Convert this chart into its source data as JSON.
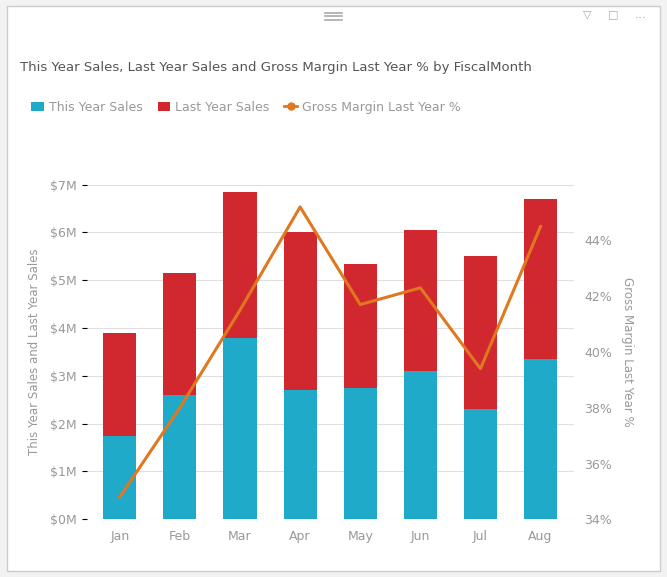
{
  "title": "This Year Sales, Last Year Sales and Gross Margin Last Year % by FiscalMonth",
  "months": [
    "Jan",
    "Feb",
    "Mar",
    "Apr",
    "May",
    "Jun",
    "Jul",
    "Aug"
  ],
  "this_year_sales": [
    1.75,
    2.6,
    3.8,
    2.7,
    2.75,
    3.1,
    2.3,
    3.35
  ],
  "last_year_sales": [
    2.15,
    2.55,
    3.05,
    3.3,
    2.6,
    2.95,
    3.2,
    3.35
  ],
  "gross_margin_pct": [
    34.8,
    38.0,
    41.5,
    45.2,
    41.7,
    42.3,
    39.4,
    44.5
  ],
  "bar_color_this": "#1EAAC8",
  "bar_color_last": "#D0282E",
  "line_color": "#E07820",
  "legend_labels": [
    "This Year Sales",
    "Last Year Sales",
    "Gross Margin Last Year %"
  ],
  "ylabel_left": "This Year Sales and Last Year Sales",
  "ylabel_right": "Gross Margin Last Year %",
  "ylim_left": [
    0,
    7
  ],
  "ylim_right": [
    34,
    46
  ],
  "yticks_left": [
    0,
    1,
    2,
    3,
    4,
    5,
    6,
    7
  ],
  "yticks_right": [
    34,
    36,
    38,
    40,
    42,
    44
  ],
  "background_color": "#FFFFFF",
  "outer_bg": "#F2F2F2",
  "title_color": "#555555",
  "label_color": "#999999",
  "tick_color": "#999999",
  "grid_color": "#E0E0E0",
  "title_fontsize": 9.5,
  "legend_fontsize": 9,
  "axis_label_fontsize": 8.5,
  "tick_fontsize": 9,
  "bar_width": 0.55
}
